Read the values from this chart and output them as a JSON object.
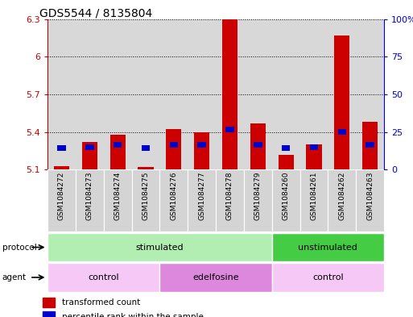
{
  "title": "GDS5544 / 8135804",
  "samples": [
    "GSM1084272",
    "GSM1084273",
    "GSM1084274",
    "GSM1084275",
    "GSM1084276",
    "GSM1084277",
    "GSM1084278",
    "GSM1084279",
    "GSM1084260",
    "GSM1084261",
    "GSM1084262",
    "GSM1084263"
  ],
  "red_bar_top": [
    5.13,
    5.32,
    5.38,
    5.12,
    5.42,
    5.4,
    6.3,
    5.47,
    5.22,
    5.3,
    6.17,
    5.48
  ],
  "blue_pos": [
    5.27,
    5.28,
    5.3,
    5.27,
    5.3,
    5.3,
    5.42,
    5.3,
    5.27,
    5.28,
    5.4,
    5.3
  ],
  "ylim_left": [
    5.1,
    6.3
  ],
  "yleft_ticks": [
    5.1,
    5.4,
    5.7,
    6.0,
    6.3
  ],
  "yleft_labels": [
    "5.1",
    "5.4",
    "5.7",
    "6",
    "6.3"
  ],
  "yright_ticks": [
    0,
    25,
    50,
    75,
    100
  ],
  "yright_labels": [
    "0",
    "25",
    "50",
    "75",
    "100%"
  ],
  "protocol_groups": [
    {
      "label": "stimulated",
      "start": 0,
      "end": 8,
      "color": "#b2edb2"
    },
    {
      "label": "unstimulated",
      "start": 8,
      "end": 12,
      "color": "#44cc44"
    }
  ],
  "agent_groups": [
    {
      "label": "control",
      "start": 0,
      "end": 4,
      "color": "#f5c8f5"
    },
    {
      "label": "edelfosine",
      "start": 4,
      "end": 8,
      "color": "#dd88dd"
    },
    {
      "label": "control",
      "start": 8,
      "end": 12,
      "color": "#f5c8f5"
    }
  ],
  "bar_color": "#cc0000",
  "blue_color": "#0000cc",
  "background_color": "#ffffff",
  "title_fontsize": 10,
  "axis_label_color_left": "#cc0000",
  "axis_label_color_right": "#0000cc",
  "base_value": 5.1
}
